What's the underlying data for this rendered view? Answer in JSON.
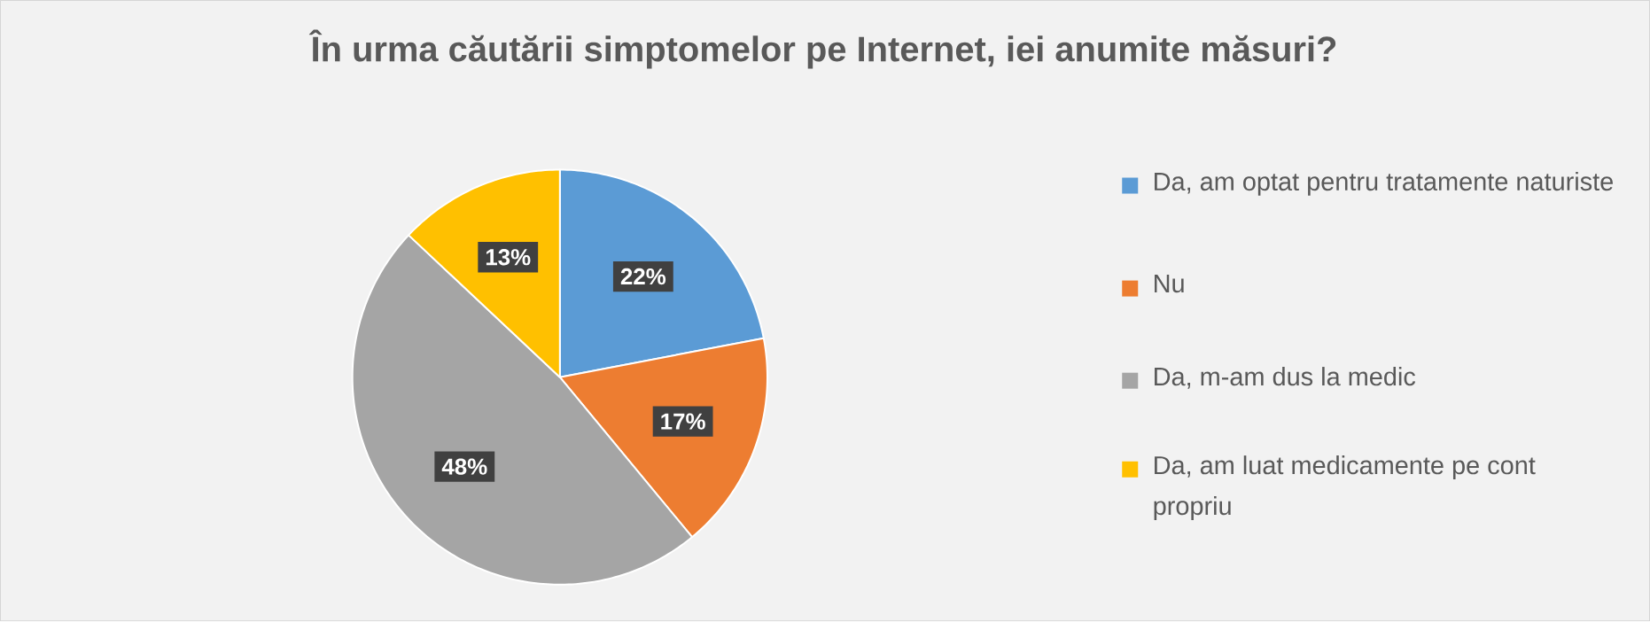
{
  "chart_data": {
    "type": "pie",
    "title": "În urma căutării simptomelor pe Internet, iei anumite măsuri?",
    "categories": [
      "Da, am optat pentru tratamente naturiste",
      "Nu",
      "Da, m-am dus la medic",
      "Da, am luat medicamente pe cont propriu"
    ],
    "values": [
      22,
      17,
      48,
      13
    ],
    "value_labels": [
      "22%",
      "17%",
      "48%",
      "13%"
    ],
    "colors": [
      "#5b9bd5",
      "#ed7d31",
      "#a5a5a5",
      "#ffc000"
    ],
    "legend": "right"
  }
}
